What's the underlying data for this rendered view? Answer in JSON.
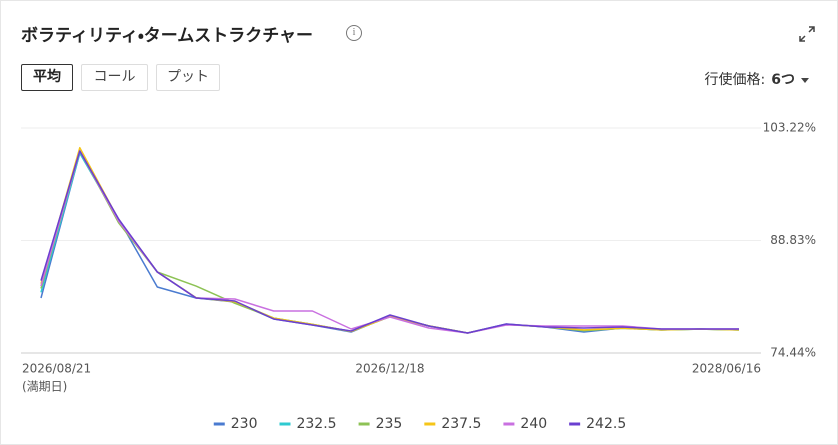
{
  "header": {
    "title": "ボラティリティ・タームストラクチャー"
  },
  "controls": {
    "tabs": [
      "平均",
      "コール",
      "プット"
    ],
    "strike_label": "行使価格:",
    "strike_value": "6つ"
  },
  "chart_data": {
    "type": "line",
    "categories": [
      "2026/08/21",
      null,
      null,
      null,
      null,
      null,
      null,
      null,
      null,
      "2026/12/18",
      null,
      null,
      null,
      null,
      null,
      null,
      null,
      null,
      "2028/06/16"
    ],
    "x_note": "(満期日)",
    "series": [
      {
        "name": "230",
        "color": "#4a7bd0",
        "values": [
          81.47,
          100.02,
          91.58,
          82.88,
          81.47,
          80.96,
          78.79,
          78.02,
          77.13,
          79.17,
          77.89,
          77.0,
          78.15,
          77.77,
          77.13,
          77.64,
          77.38,
          77.51,
          77.38
        ]
      },
      {
        "name": "232.5",
        "color": "#2ecad0",
        "values": [
          82.2,
          100.0,
          91.4,
          84.8,
          81.5,
          81.0,
          78.9,
          78.1,
          77.2,
          79.1,
          77.9,
          77.0,
          78.1,
          77.8,
          77.3,
          77.6,
          77.4,
          77.5,
          77.4
        ]
      },
      {
        "name": "235",
        "color": "#8dc255",
        "values": [
          82.7,
          100.3,
          91.1,
          84.8,
          83.0,
          80.8,
          78.9,
          78.1,
          77.2,
          79.1,
          77.9,
          77.0,
          78.1,
          77.8,
          77.3,
          77.6,
          77.4,
          77.5,
          77.4
        ]
      },
      {
        "name": "237.5",
        "color": "#f5c518",
        "values": [
          83.3,
          100.7,
          91.5,
          84.8,
          81.5,
          81.0,
          78.9,
          78.1,
          77.2,
          79.1,
          77.9,
          77.0,
          78.1,
          77.8,
          77.4,
          77.6,
          77.4,
          77.5,
          77.4
        ]
      },
      {
        "name": "240",
        "color": "#c970e0",
        "values": [
          83.0,
          100.28,
          91.32,
          84.8,
          81.47,
          81.35,
          79.81,
          79.81,
          77.51,
          79.04,
          77.64,
          77.0,
          78.02,
          77.89,
          77.89,
          77.89,
          77.51,
          77.51,
          77.51
        ]
      },
      {
        "name": "242.5",
        "color": "#6a3fd0",
        "values": [
          83.7,
          100.28,
          91.58,
          84.8,
          81.47,
          81.09,
          78.79,
          78.02,
          77.26,
          79.3,
          77.89,
          77.0,
          78.15,
          77.77,
          77.64,
          77.77,
          77.51,
          77.51,
          77.51
        ]
      }
    ],
    "ylim": [
      74.44,
      103.22
    ],
    "yticks": [
      {
        "value": 74.44,
        "label": "74.44%"
      },
      {
        "value": 88.83,
        "label": "88.83%"
      },
      {
        "value": 103.22,
        "label": "103.22%"
      }
    ],
    "grid": true
  }
}
